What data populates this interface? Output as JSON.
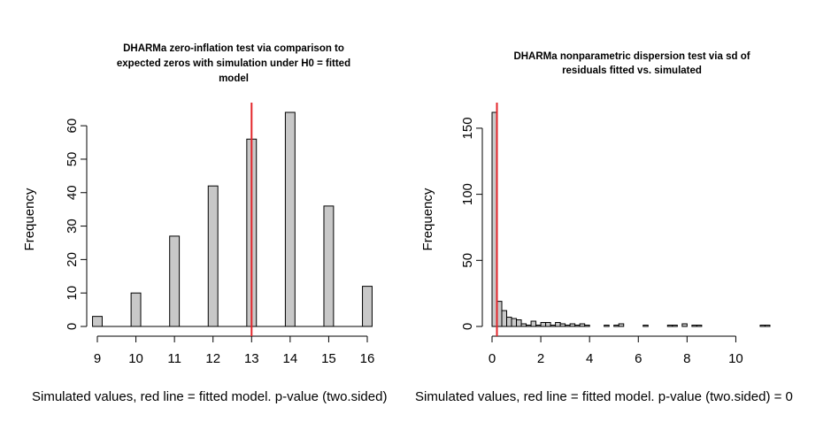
{
  "chart_data": [
    {
      "type": "bar",
      "title_lines": [
        "DHARMa zero-inflation test via comparison to",
        "expected zeros with simulation under H0 = fitted",
        "model"
      ],
      "xlabel": "Simulated values, red line = fitted model. p-value (two.sided)",
      "ylabel": "Frequency",
      "xlim": [
        9,
        16
      ],
      "ylim": [
        0,
        64
      ],
      "xticks": [
        9,
        10,
        11,
        12,
        13,
        14,
        15,
        16
      ],
      "yticks": [
        0,
        10,
        20,
        30,
        40,
        50,
        60
      ],
      "bar_width": 0.25,
      "x": [
        9,
        10,
        11,
        12,
        13,
        14,
        15,
        16
      ],
      "values": [
        3,
        10,
        27,
        42,
        56,
        64,
        36,
        12
      ],
      "observed": 13,
      "observed_color": "#e3262b",
      "bar_color": "#c8c8c8"
    },
    {
      "type": "bar",
      "title_lines": [
        "DHARMa nonparametric dispersion test via sd of",
        "residuals fitted vs. simulated"
      ],
      "xlabel": "Simulated values, red line = fitted model. p-value (two.sided) = 0",
      "ylabel": "Frequency",
      "xlim": [
        0,
        11.4
      ],
      "ylim": [
        0,
        162
      ],
      "xticks": [
        0,
        2,
        4,
        6,
        8,
        10
      ],
      "yticks": [
        0,
        50,
        100,
        150
      ],
      "bin_width": 0.2,
      "bin_starts": [
        0,
        0.2,
        0.4,
        0.6,
        0.8,
        1.0,
        1.2,
        1.4,
        1.6,
        1.8,
        2.0,
        2.2,
        2.4,
        2.6,
        2.8,
        3.0,
        3.2,
        3.4,
        3.6,
        3.8,
        4.0,
        4.2,
        4.4,
        4.6,
        4.8,
        5.0,
        5.2,
        5.4,
        5.6,
        5.8,
        6.0,
        6.2,
        6.4,
        6.6,
        6.8,
        7.0,
        7.2,
        7.4,
        7.6,
        7.8,
        8.0,
        8.2,
        8.4,
        8.6,
        8.8,
        9.0,
        9.2,
        9.4,
        9.6,
        9.8,
        10.0,
        10.2,
        10.4,
        10.6,
        10.8,
        11.0,
        11.2
      ],
      "values": [
        162,
        19,
        12,
        7,
        6,
        5,
        2,
        1,
        4,
        1,
        3,
        3,
        1,
        3,
        2,
        1,
        2,
        1,
        2,
        1,
        0,
        0,
        0,
        1,
        0,
        1,
        2,
        0,
        0,
        0,
        0,
        1,
        0,
        0,
        0,
        0,
        1,
        1,
        0,
        2,
        0,
        1,
        1,
        0,
        0,
        0,
        0,
        0,
        0,
        0,
        0,
        0,
        0,
        0,
        0,
        1,
        1
      ],
      "observed": 0.2,
      "observed_color": "#e3262b",
      "bar_color": "#c8c8c8"
    }
  ]
}
